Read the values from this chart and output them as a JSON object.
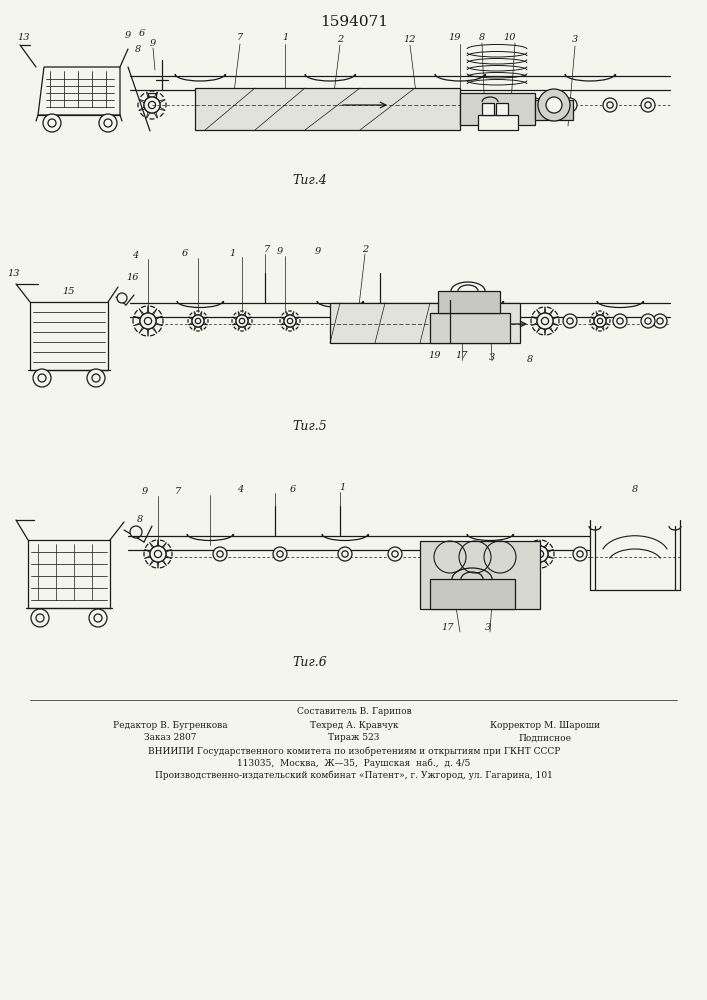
{
  "title": "1594071",
  "fig4_label": "Τиг.4",
  "fig5_label": "Τиг.5",
  "fig6_label": "Τиг.6",
  "footer_line0": "Составитель В. Гарипов",
  "footer_col1_line1": "Редактор В. Бугренкова",
  "footer_col1_line2": "Заказ 2807",
  "footer_col2_line1": "Техред А. Кравчук",
  "footer_col2_line2": "Тираж 523",
  "footer_col3_line1": "Корректор М. Шароши",
  "footer_col3_line2": "Подписное",
  "footer_vniip": "ВНИИПИ Государственного комитета по изобретениям и открытиям при ГКНТ СССР",
  "footer_addr": "113035,  Москва,  Ж—35,  Раушская  наб.,  д. 4/5",
  "footer_prod": "Производственно-издательский комбинат «Патент», г. Ужгород, ул. Гагарина, 101",
  "bg_color": "#f5f5f0",
  "line_color": "#1a1a1a"
}
